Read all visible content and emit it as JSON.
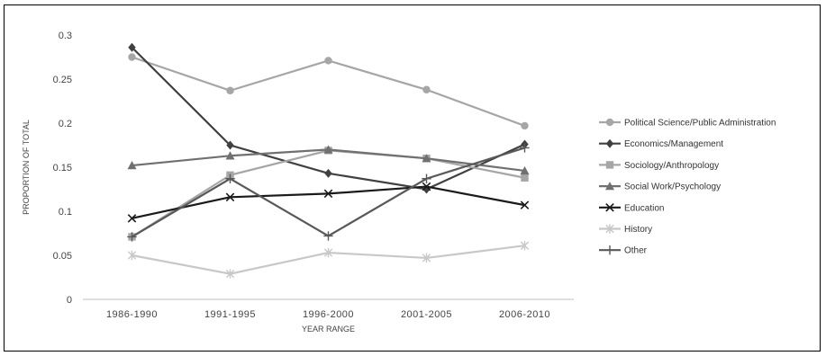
{
  "chart_data": {
    "type": "line",
    "xlabel": "YEAR RANGE",
    "ylabel": "PROPORTION OF TOTAL",
    "ylim": [
      0,
      0.3
    ],
    "yticks": [
      "0",
      "0.05",
      "0.1",
      "0.15",
      "0.2",
      "0.25",
      "0.3"
    ],
    "categories": [
      "1986-1990",
      "1991-1995",
      "1996-2000",
      "2001-2005",
      "2006-2010"
    ],
    "legend_position": "right",
    "grid": false,
    "series": [
      {
        "name": "Political Science/Public Administration",
        "marker": "circle",
        "color": "#a6a6a6",
        "values": [
          0.275,
          0.237,
          0.271,
          0.238,
          0.197
        ]
      },
      {
        "name": "Economics/Management",
        "marker": "diamond",
        "color": "#404040",
        "values": [
          0.286,
          0.175,
          0.143,
          0.125,
          0.176
        ]
      },
      {
        "name": "Sociology/Anthropology",
        "marker": "square",
        "color": "#a6a6a6",
        "values": [
          0.071,
          0.141,
          0.169,
          0.16,
          0.138
        ]
      },
      {
        "name": "Social Work/Psychology",
        "marker": "triangle",
        "color": "#707070",
        "values": [
          0.152,
          0.163,
          0.17,
          0.16,
          0.146
        ]
      },
      {
        "name": "Education",
        "marker": "x",
        "color": "#1a1a1a",
        "values": [
          0.092,
          0.116,
          0.12,
          0.128,
          0.107
        ]
      },
      {
        "name": "History",
        "marker": "asterisk",
        "color": "#c8c8c8",
        "values": [
          0.05,
          0.029,
          0.053,
          0.047,
          0.061
        ]
      },
      {
        "name": "Other",
        "marker": "plus",
        "color": "#595959",
        "values": [
          0.071,
          0.137,
          0.072,
          0.137,
          0.172
        ]
      }
    ]
  }
}
